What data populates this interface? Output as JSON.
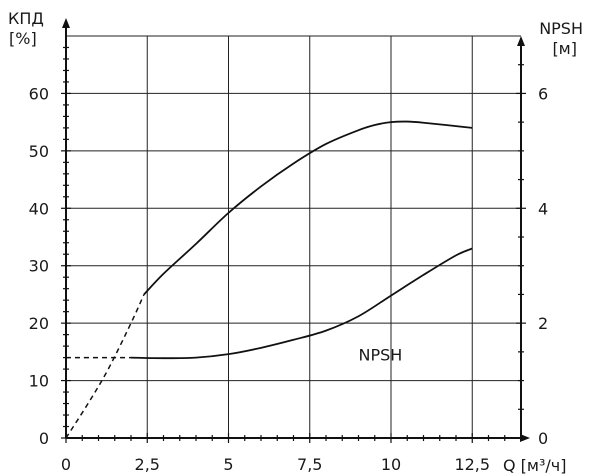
{
  "chart_data": {
    "type": "line",
    "y_left": {
      "label_line1": "КПД",
      "label_line2": "[%]",
      "range": [
        0,
        70
      ],
      "ticks": [
        0,
        10,
        20,
        30,
        40,
        50,
        60
      ],
      "tick_labels": [
        "0",
        "10",
        "20",
        "30",
        "40",
        "50",
        "60"
      ]
    },
    "y_right": {
      "label_line1": "NPSH",
      "label_line2": "[м]",
      "range": [
        0,
        7
      ],
      "ticks": [
        0,
        2,
        4,
        6
      ],
      "tick_labels": [
        "0",
        "2",
        "4",
        "6"
      ]
    },
    "x": {
      "label": "Q [м³/ч]",
      "range": [
        0,
        14
      ],
      "ticks": [
        0,
        2.5,
        5,
        7.5,
        10,
        12.5
      ],
      "tick_labels": [
        "0",
        "2,5",
        "5",
        "7,5",
        "10",
        "12,5"
      ]
    },
    "grid": true,
    "series": [
      {
        "axis": "left",
        "solid": [
          [
            2.4,
            25
          ],
          [
            3,
            28.6
          ],
          [
            4,
            33.8
          ],
          [
            5,
            39.2
          ],
          [
            6,
            43.8
          ],
          [
            7,
            47.8
          ],
          [
            8,
            51.2
          ],
          [
            9,
            53.6
          ],
          [
            9.5,
            54.5
          ],
          [
            10,
            55
          ],
          [
            10.5,
            55.1
          ],
          [
            11,
            54.9
          ],
          [
            12.5,
            54
          ]
        ],
        "dashed": [
          [
            0,
            0
          ],
          [
            0.7,
            6.2
          ],
          [
            1.3,
            12
          ],
          [
            2,
            20
          ],
          [
            2.4,
            25
          ]
        ]
      },
      {
        "name": "NPSH",
        "axis": "right",
        "solid": [
          [
            2,
            1.4
          ],
          [
            3,
            1.39
          ],
          [
            4,
            1.4
          ],
          [
            5,
            1.46
          ],
          [
            6,
            1.57
          ],
          [
            7,
            1.71
          ],
          [
            8,
            1.87
          ],
          [
            9,
            2.12
          ],
          [
            10,
            2.48
          ],
          [
            11,
            2.84
          ],
          [
            12,
            3.18
          ],
          [
            12.5,
            3.3
          ]
        ],
        "dashed": [
          [
            0,
            1.4
          ],
          [
            2,
            1.4
          ]
        ]
      }
    ],
    "annotations": [
      {
        "text": "NPSH",
        "x": 9.0,
        "y": 14.5
      }
    ]
  }
}
